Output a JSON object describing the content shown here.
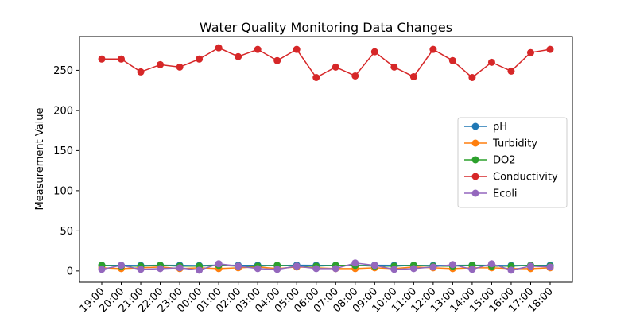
{
  "chart_data": {
    "type": "line",
    "title": "Water Quality Monitoring Data Changes",
    "xlabel": "",
    "ylabel": "Measurement Value",
    "categories": [
      "19:00",
      "20:00",
      "21:00",
      "22:00",
      "23:00",
      "00:00",
      "01:00",
      "02:00",
      "03:00",
      "04:00",
      "05:00",
      "06:00",
      "07:00",
      "08:00",
      "09:00",
      "10:00",
      "11:00",
      "12:00",
      "13:00",
      "14:00",
      "15:00",
      "16:00",
      "17:00",
      "18:00"
    ],
    "ylim": [
      -14,
      292
    ],
    "yticks": [
      0,
      50,
      100,
      150,
      200,
      250
    ],
    "grid": false,
    "legend": "center-right",
    "series": [
      {
        "name": "pH",
        "color": "#1f77b4",
        "values": [
          7.1,
          7.0,
          6.9,
          7.2,
          7.1,
          6.8,
          7.3,
          7.0,
          7.1,
          6.9,
          7.2,
          7.0,
          7.1,
          6.8,
          7.2,
          7.0,
          7.1,
          6.9,
          7.0,
          7.2,
          7.1,
          6.9,
          7.0,
          7.1
        ]
      },
      {
        "name": "Turbidity",
        "color": "#ff7f0e",
        "values": [
          4,
          3,
          4,
          5,
          3,
          4,
          3,
          4,
          5,
          3,
          5,
          4,
          3,
          3,
          4,
          3,
          5,
          4,
          3,
          4,
          4,
          3,
          3,
          4
        ]
      },
      {
        "name": "DO2",
        "color": "#2ca02c",
        "values": [
          7,
          6,
          6,
          7,
          6,
          6,
          7,
          6,
          6,
          7,
          6,
          6,
          7,
          7,
          6,
          6,
          7,
          6,
          6,
          7,
          6,
          6,
          7,
          6
        ]
      },
      {
        "name": "Conductivity",
        "color": "#d62728",
        "values": [
          264,
          264,
          248,
          257,
          254,
          264,
          278,
          267,
          276,
          262,
          276,
          241,
          254,
          243,
          273,
          254,
          242,
          276,
          262,
          241,
          260,
          249,
          272,
          276
        ]
      },
      {
        "name": "Ecoli",
        "color": "#9467bd",
        "values": [
          2,
          7,
          2,
          3,
          4,
          1,
          9,
          6,
          3,
          2,
          6,
          3,
          3,
          10,
          7,
          2,
          3,
          5,
          8,
          2,
          9,
          1,
          6,
          5
        ]
      }
    ]
  }
}
